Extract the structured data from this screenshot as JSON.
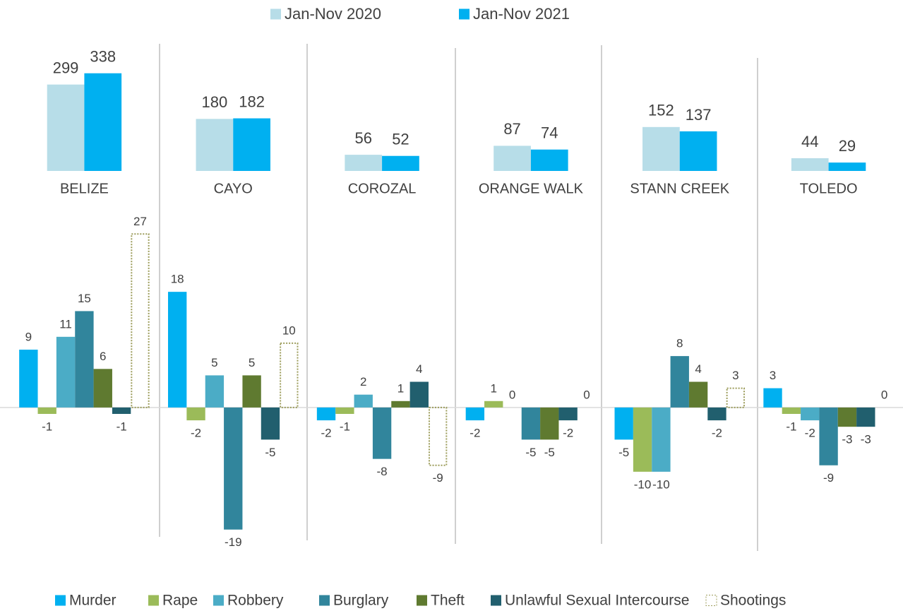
{
  "chart_data": [
    {
      "type": "bar",
      "categories": [
        "BELIZE",
        "CAYO",
        "COROZAL",
        "ORANGE WALK",
        "STANN CREEK",
        "TOLEDO"
      ],
      "series": [
        {
          "name": "Jan-Nov 2020",
          "color": "#b7dde8",
          "values": [
            299,
            180,
            56,
            87,
            152,
            44
          ]
        },
        {
          "name": "Jan-Nov 2021",
          "color": "#00b0f0",
          "values": [
            338,
            182,
            52,
            74,
            137,
            29
          ]
        }
      ],
      "ylim": [
        0,
        440
      ],
      "grid": false,
      "legend": "top"
    },
    {
      "type": "bar",
      "categories": [
        "BELIZE",
        "CAYO",
        "COROZAL",
        "ORANGE WALK",
        "STANN CREEK",
        "TOLEDO"
      ],
      "series": [
        {
          "name": "Murder",
          "color": "#00b0f0",
          "values": [
            9,
            18,
            -2,
            -2,
            -5,
            3
          ]
        },
        {
          "name": "Rape",
          "color": "#9bbb59",
          "values": [
            -1,
            -2,
            -1,
            1,
            -10,
            -1
          ]
        },
        {
          "name": "Robbery",
          "color": "#4bacc6",
          "values": [
            11,
            5,
            2,
            0,
            -10,
            -2
          ]
        },
        {
          "name": "Burglary",
          "color": "#31859c",
          "values": [
            15,
            -19,
            -8,
            -5,
            8,
            -9
          ]
        },
        {
          "name": "Theft",
          "color": "#5f7a30",
          "values": [
            6,
            5,
            1,
            -5,
            4,
            -3
          ]
        },
        {
          "name": "Unlawful Sexual Intercourse",
          "color": "#215f6e",
          "values": [
            -1,
            -5,
            4,
            -2,
            -2,
            -3
          ]
        },
        {
          "name": "Shootings",
          "color": "#9c9c5a",
          "style": "dotted-outline",
          "values": [
            27,
            10,
            -9,
            0,
            3,
            0
          ]
        }
      ],
      "ylim": [
        -22,
        30
      ],
      "grid": false,
      "legend": "bottom"
    }
  ]
}
